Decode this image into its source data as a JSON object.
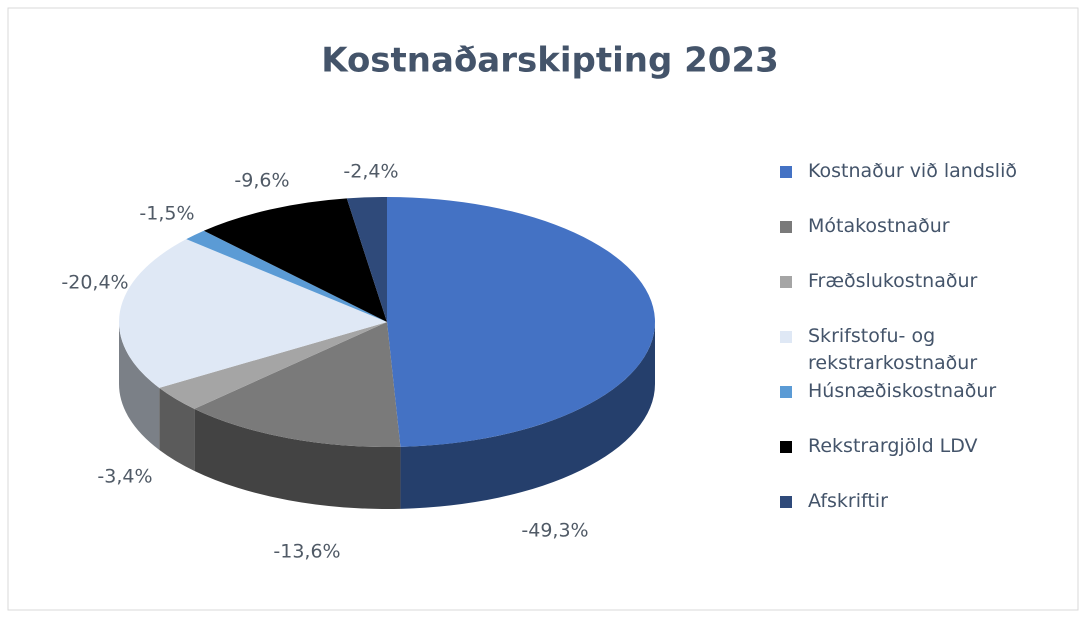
{
  "chart_data": {
    "type": "pie",
    "title": "Kostnaðarskipting 2023",
    "categories": [
      "Kostnaður við landslið",
      "Mótakostnaður",
      "Fræðslukostnaður",
      "Skrifstofu- og rekstrarkostnaður",
      "Húsnæðiskostnaður",
      "Rekstrargjöld LDV",
      "Afskriftir"
    ],
    "values": [
      -49.3,
      -13.6,
      -3.4,
      -20.4,
      -1.5,
      -9.6,
      -2.4
    ],
    "value_labels": [
      "-49,3%",
      "-13,6%",
      "-3,4%",
      "-20,4%",
      "-1,5%",
      "-9,6%",
      "-2,4%"
    ],
    "colors": [
      "#4472c4",
      "#7a7a7a",
      "#a5a5a5",
      "#dfe8f5",
      "#5b9bd5",
      "#000000",
      "#2f4a7a"
    ],
    "legend": "right"
  }
}
